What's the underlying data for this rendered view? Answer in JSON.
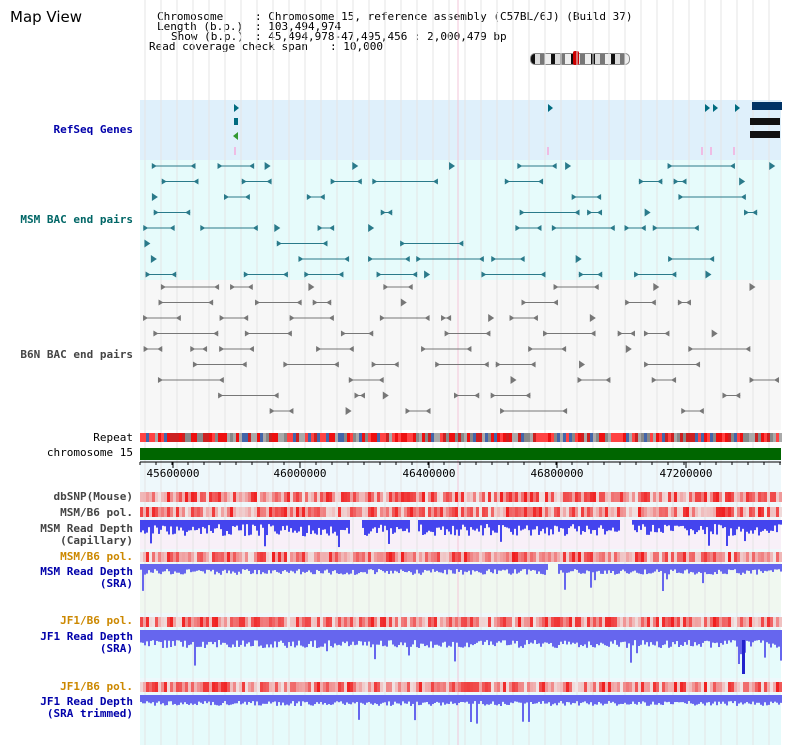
{
  "page_title": "Map View",
  "info": {
    "chromosome_key": "Chromosome",
    "chromosome_value": ": Chromosome 15, reference assembly (C57BL/6J) (Build 37)",
    "length_key": "Length (b.p.)",
    "length_value": ": 103,494,974",
    "show_key": "Show (b.p.)",
    "show_value": ": 45,494,978-47,495,456 : 2,000,479 bp",
    "coverage_key": "Read coverage check span",
    "coverage_value": ": 10,000"
  },
  "tracks": {
    "refseq": "RefSeq Genes",
    "msm_bac": "MSM BAC end pairs",
    "b6n_bac": "B6N BAC end pairs",
    "repeat": "Repeat",
    "chromosome": "chromosome 15",
    "dbsnp": "dbSNP(Mouse)",
    "msm_b6_pol_1": "MSM/B6 pol.",
    "msm_depth_cap": "MSM Read Depth\n(Capillary)",
    "msm_b6_pol_2": "MSM/B6 pol.",
    "msm_depth_sra": "MSM Read Depth\n(SRA)",
    "jf1_b6_pol_1": "JF1/B6 pol.",
    "jf1_depth_sra": "JF1 Read Depth\n(SRA)",
    "jf1_b6_pol_2": "JF1/B6 pol.",
    "jf1_depth_trim": "JF1 Read Depth\n(SRA trimmed)"
  },
  "axis": {
    "ticks": [
      "45600000",
      "46000000",
      "46400000",
      "46800000",
      "47200000"
    ]
  },
  "colors": {
    "refseq_bg": "#dff0fb",
    "msm_bg": "#e6fbfb",
    "b6n_bg": "#f7f7f7",
    "lower_bg": "#eef8fb",
    "cap_bg": "#f8f0f8",
    "sra_bg": "#f0f8f0",
    "chrom_bar": "#006600",
    "depth_blue": "#6666ee",
    "depth_dark": "#2222cc"
  }
}
